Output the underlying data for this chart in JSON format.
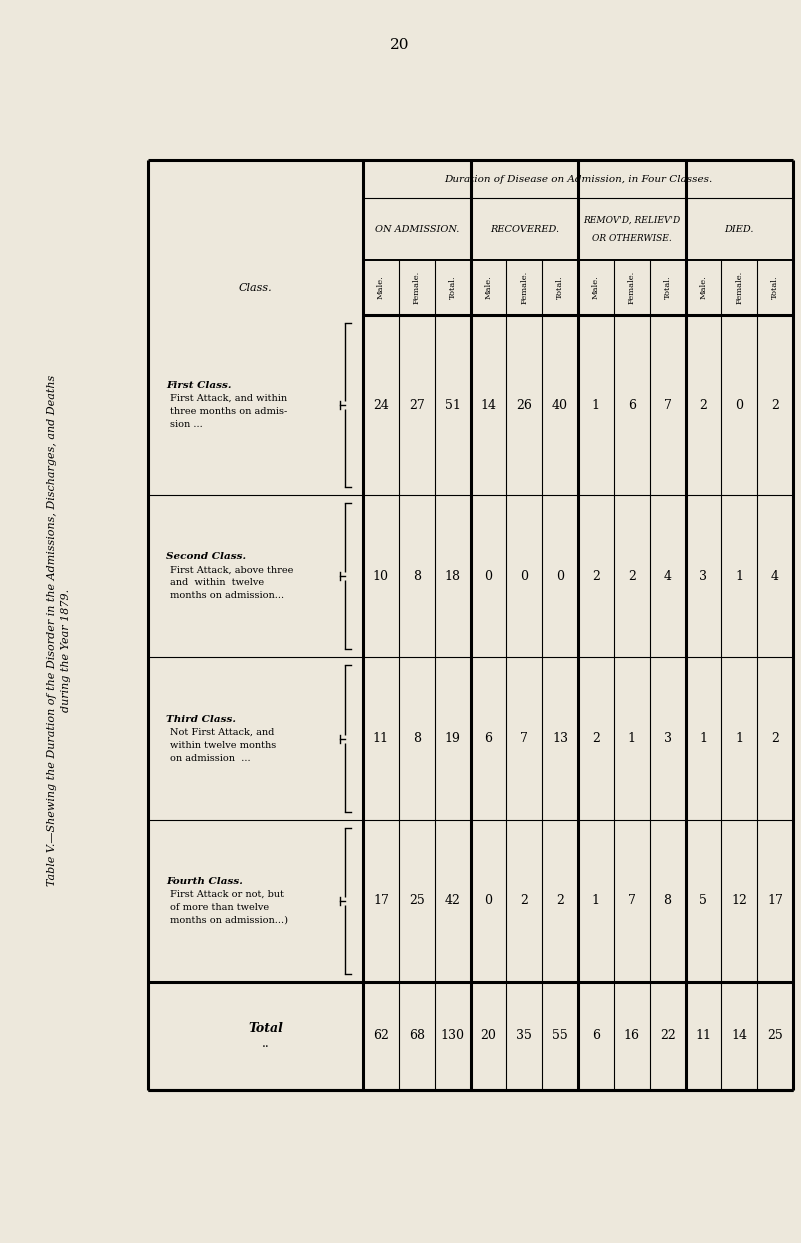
{
  "page_number": "20",
  "title_line1": "Table V.—Shewing the Duration of the Disorder in the Admissions, Discharges, and Deaths",
  "title_line2": "during the Year 1879.",
  "bg_color": "#ede8dc",
  "classes": [
    {
      "name": "First Class.",
      "lines": [
        "First Attack, and within",
        "three months on admis-",
        "sion ... "
      ]
    },
    {
      "name": "Second Class.",
      "lines": [
        "First Attack, above three",
        "and  within  twelve",
        "months on admission..."
      ]
    },
    {
      "name": "Third Class.",
      "lines": [
        "Not First Attack, and",
        "within twelve months",
        "on admission  ..."
      ]
    },
    {
      "name": "Fourth Class.",
      "lines": [
        "First Attack or not, but",
        "of more than twelve",
        "months on admission...)"
      ]
    },
    {
      "name": "Total",
      "lines": [
        ".."
      ]
    }
  ],
  "on_admission": {
    "male": [
      24,
      10,
      11,
      17,
      62
    ],
    "female": [
      27,
      8,
      8,
      25,
      68
    ],
    "total": [
      51,
      18,
      19,
      42,
      130
    ]
  },
  "recovered": {
    "male": [
      14,
      0,
      6,
      0,
      20
    ],
    "female": [
      26,
      0,
      7,
      2,
      35
    ],
    "total": [
      40,
      0,
      13,
      2,
      55
    ]
  },
  "removed": {
    "male": [
      1,
      2,
      2,
      1,
      6
    ],
    "female": [
      6,
      2,
      1,
      7,
      16
    ],
    "total": [
      7,
      4,
      3,
      8,
      22
    ]
  },
  "died": {
    "male": [
      2,
      3,
      1,
      5,
      11
    ],
    "female": [
      0,
      1,
      1,
      12,
      14
    ],
    "total": [
      2,
      4,
      2,
      17,
      25
    ]
  },
  "col_group_header": "Duration of Disease on Admission, in Four Classes.",
  "subgroups": [
    "ON ADMISSION.",
    "RECOVERED.",
    "REMOV'D, RELIEV'D\nOR OTHERWISE.",
    "DIED."
  ],
  "sub_labels": [
    "Male.",
    "Female.",
    "Total."
  ]
}
